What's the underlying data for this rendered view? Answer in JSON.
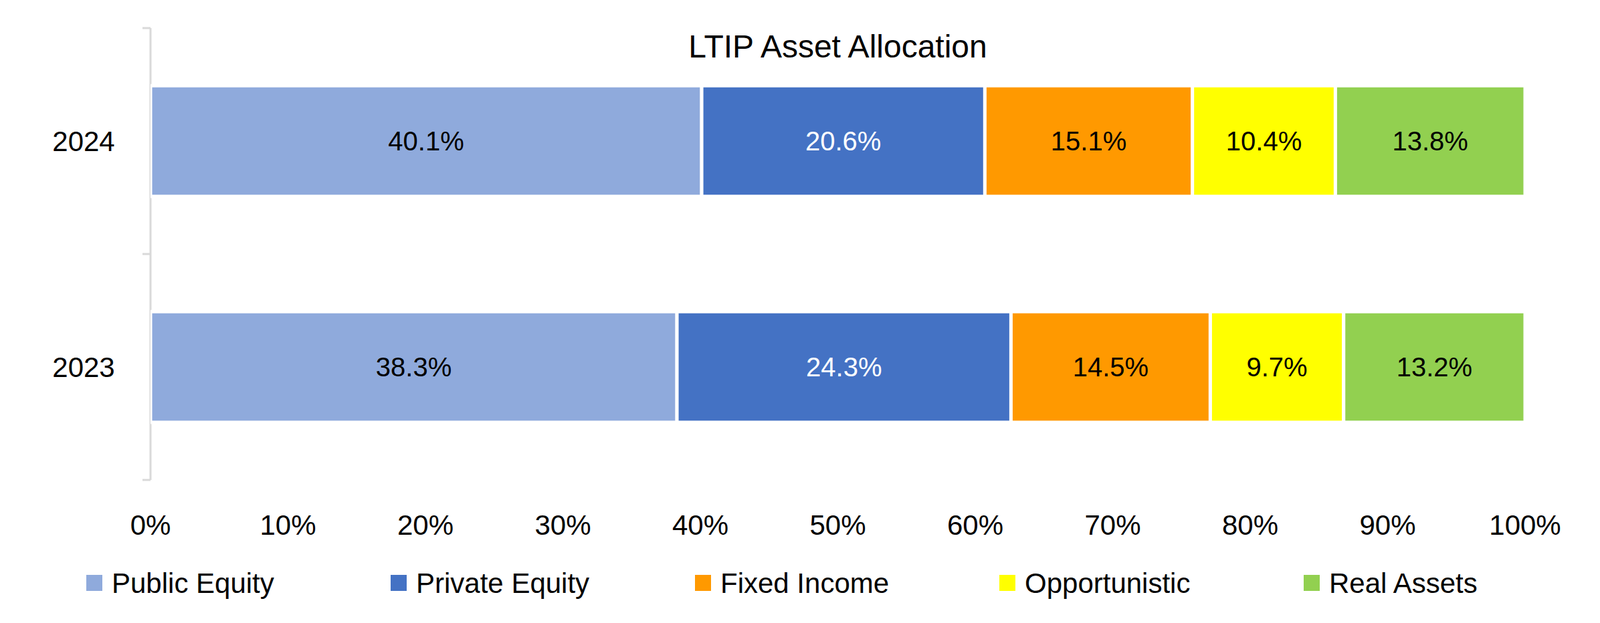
{
  "chart_data": {
    "type": "bar",
    "title": "LTIP Asset Allocation",
    "orientation": "horizontal",
    "stacked": true,
    "data_labels": true,
    "grid": false,
    "legend": "bottom",
    "categories": [
      "2024",
      "2023"
    ],
    "xlim": [
      0,
      100
    ],
    "xticks": [
      {
        "value": 0,
        "label": "0%"
      },
      {
        "value": 10,
        "label": "10%"
      },
      {
        "value": 20,
        "label": "20%"
      },
      {
        "value": 30,
        "label": "30%"
      },
      {
        "value": 40,
        "label": "40%"
      },
      {
        "value": 50,
        "label": "50%"
      },
      {
        "value": 60,
        "label": "60%"
      },
      {
        "value": 70,
        "label": "70%"
      },
      {
        "value": 80,
        "label": "80%"
      },
      {
        "value": 90,
        "label": "90%"
      },
      {
        "value": 100,
        "label": "100%"
      }
    ],
    "series": [
      {
        "name": "Public Equity",
        "color": "#8faadc",
        "values": [
          40.1,
          38.3
        ],
        "value_labels": [
          "40.1%",
          "38.3%"
        ]
      },
      {
        "name": "Private Equity",
        "color": "#4472c4",
        "values": [
          20.6,
          24.3
        ],
        "value_labels": [
          "20.6%",
          "24.3%"
        ]
      },
      {
        "name": "Fixed Income",
        "color": "#ff9900",
        "values": [
          15.1,
          14.5
        ],
        "value_labels": [
          "15.1%",
          "14.5%"
        ]
      },
      {
        "name": "Opportunistic",
        "color": "#ffff00",
        "values": [
          10.4,
          9.7
        ],
        "value_labels": [
          "10.4%",
          "9.7%"
        ]
      },
      {
        "name": "Real Assets",
        "color": "#92d050",
        "values": [
          13.8,
          13.2
        ],
        "value_labels": [
          "13.8%",
          "13.2%"
        ]
      }
    ]
  }
}
